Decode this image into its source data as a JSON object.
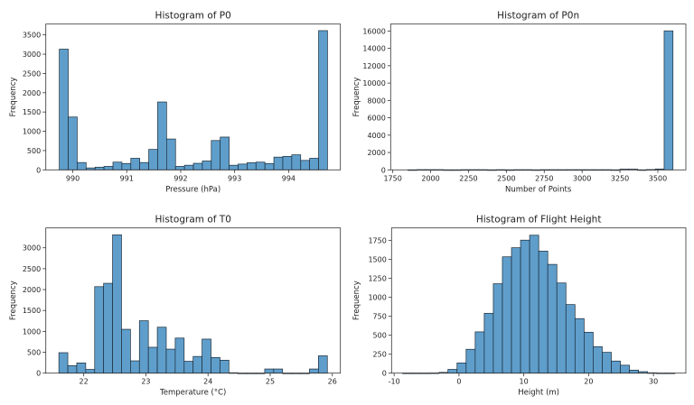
{
  "style": {
    "bar_color": "#5f9ecb",
    "edge_color": "#1c2b38",
    "frame_color": "#333333"
  },
  "chart_data": [
    {
      "type": "bar",
      "title": "Histogram of P0",
      "xlabel": "Pressure (hPa)",
      "ylabel": "Frequency",
      "xlim": [
        989.5,
        994.96
      ],
      "ylim": [
        0,
        3780
      ],
      "xticks": [
        990,
        991,
        992,
        993,
        994
      ],
      "yticks": [
        0,
        500,
        1000,
        1500,
        2000,
        2500,
        3000,
        3500
      ],
      "bin_start": 989.75,
      "bin_width": 0.1657,
      "values": [
        3130,
        1370,
        190,
        50,
        70,
        90,
        200,
        165,
        300,
        190,
        530,
        1760,
        800,
        90,
        120,
        170,
        230,
        760,
        850,
        120,
        150,
        185,
        200,
        165,
        330,
        350,
        390,
        245,
        300,
        3610
      ],
      "grid": false
    },
    {
      "type": "bar",
      "title": "Histogram of P0n",
      "xlabel": "Number of Points",
      "ylabel": "Frequency",
      "xlim": [
        1736,
        3685
      ],
      "ylim": [
        0,
        16800
      ],
      "xticks": [
        1750,
        2000,
        2250,
        2500,
        2750,
        3000,
        3250,
        3500
      ],
      "yticks": [
        0,
        2000,
        4000,
        6000,
        8000,
        10000,
        12000,
        14000,
        16000
      ],
      "bin_start": 1850,
      "bin_width": 58.33,
      "values": [
        0,
        20,
        20,
        20,
        0,
        0,
        15,
        15,
        15,
        0,
        15,
        0,
        15,
        15,
        0,
        15,
        15,
        15,
        15,
        15,
        15,
        15,
        15,
        0,
        80,
        80,
        0,
        30,
        100,
        16020
      ],
      "grid": false
    },
    {
      "type": "bar",
      "title": "Histogram of T0",
      "xlabel": "Temperature (°C)",
      "ylabel": "Frequency",
      "xlim": [
        21.39,
        26.13
      ],
      "ylim": [
        0,
        3475
      ],
      "xticks": [
        22,
        23,
        24,
        25,
        26
      ],
      "yticks": [
        0,
        500,
        1000,
        1500,
        2000,
        2500,
        3000
      ],
      "bin_start": 21.6,
      "bin_width": 0.144,
      "values": [
        490,
        180,
        245,
        90,
        2070,
        2150,
        3310,
        1050,
        295,
        1255,
        620,
        1100,
        575,
        840,
        285,
        400,
        815,
        375,
        310,
        10,
        0,
        0,
        0,
        100,
        100,
        0,
        0,
        0,
        100,
        415
      ],
      "grid": false
    },
    {
      "type": "bar",
      "title": "Histogram of Flight Height",
      "xlabel": "Height (m)",
      "ylabel": "Frequency",
      "xlim": [
        -10.4,
        35
      ],
      "ylim": [
        0,
        1916
      ],
      "xticks": [
        -10,
        0,
        10,
        20,
        30
      ],
      "yticks": [
        0,
        250,
        500,
        750,
        1000,
        1250,
        1500,
        1750
      ],
      "bin_start": -8.7,
      "bin_width": 1.4,
      "values": [
        1,
        1,
        1,
        2,
        10,
        50,
        135,
        315,
        545,
        790,
        1180,
        1535,
        1655,
        1755,
        1820,
        1610,
        1435,
        1190,
        905,
        720,
        540,
        350,
        275,
        160,
        105,
        40,
        20,
        5,
        1,
        1
      ],
      "grid": false
    }
  ]
}
